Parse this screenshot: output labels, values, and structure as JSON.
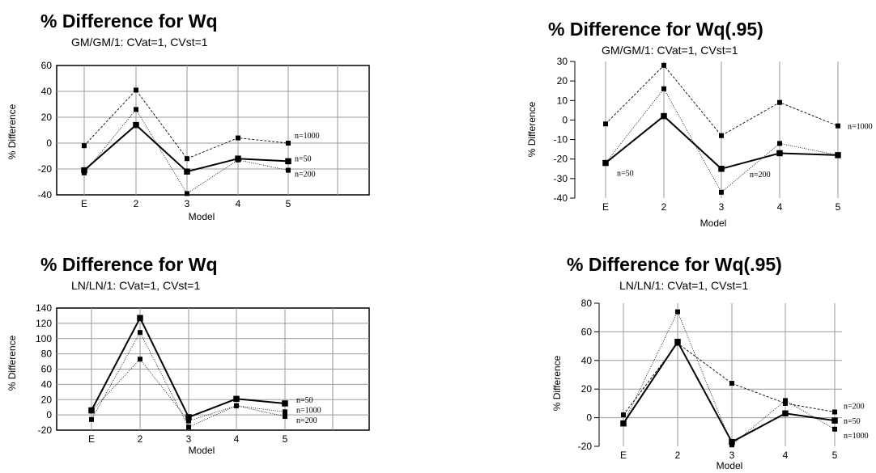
{
  "chart_data": [
    {
      "type": "line",
      "title": "% Difference for Wq",
      "subtitle": "GM/GM/1: CVat=1, CVst=1",
      "xlabel": "Model",
      "ylabel": "% Difference",
      "categories": [
        "E",
        "2",
        "3",
        "4",
        "5"
      ],
      "ylim": [
        -40,
        60
      ],
      "yticks": [
        60,
        40,
        20,
        0,
        -20,
        -40
      ],
      "grid": true,
      "series": [
        {
          "name": "n=1000",
          "values": [
            -2,
            41,
            -12,
            4,
            0
          ]
        },
        {
          "name": "n=50",
          "values": [
            -21,
            14,
            -22,
            -12,
            -14
          ]
        },
        {
          "name": "n=200",
          "values": [
            -23,
            26,
            -39,
            -13,
            -21
          ]
        }
      ]
    },
    {
      "type": "line",
      "title": "% Difference for Wq(.95)",
      "subtitle": "GM/GM/1: CVat=1, CVst=1",
      "xlabel": "Model",
      "ylabel": "% Difference",
      "categories": [
        "E",
        "2",
        "3",
        "4",
        "5"
      ],
      "ylim": [
        -40,
        30
      ],
      "yticks": [
        30,
        20,
        10,
        0,
        -10,
        -20,
        -30,
        -40
      ],
      "grid": true,
      "series": [
        {
          "name": "n=1000",
          "values": [
            -2,
            28,
            -8,
            9,
            -3
          ]
        },
        {
          "name": "n=50",
          "values": [
            -22,
            16,
            -37,
            -12,
            -18
          ]
        },
        {
          "name": "n=200",
          "values": [
            -22,
            2,
            -25,
            -17,
            -18
          ]
        }
      ]
    },
    {
      "type": "line",
      "title": "% Difference for Wq",
      "subtitle": "LN/LN/1: CVat=1, CVst=1",
      "xlabel": "Model",
      "ylabel": "% Difference",
      "categories": [
        "E",
        "2",
        "3",
        "4",
        "5"
      ],
      "ylim": [
        -20,
        140
      ],
      "yticks": [
        140,
        120,
        100,
        80,
        60,
        40,
        20,
        0,
        -20
      ],
      "grid": true,
      "series": [
        {
          "name": "n=50",
          "values": [
            6,
            127,
            -3,
            21,
            15
          ]
        },
        {
          "name": "n=1000",
          "values": [
            5,
            73,
            -8,
            12,
            4
          ]
        },
        {
          "name": "n=200",
          "values": [
            -6,
            108,
            -16,
            12,
            -2
          ]
        }
      ]
    },
    {
      "type": "line",
      "title": "% Difference for Wq(.95)",
      "subtitle": "LN/LN/1: CVat=1, CVst=1",
      "xlabel": "Model",
      "ylabel": "% Difference",
      "categories": [
        "E",
        "2",
        "3",
        "4",
        "5"
      ],
      "ylim": [
        -20,
        80
      ],
      "yticks": [
        80,
        60,
        40,
        20,
        0,
        -20
      ],
      "grid": true,
      "series": [
        {
          "name": "n=200",
          "values": [
            2,
            52,
            24,
            10,
            4
          ]
        },
        {
          "name": "n=50",
          "values": [
            -4,
            53,
            -17,
            3,
            -2
          ]
        },
        {
          "name": "n=1000",
          "values": [
            -4,
            74,
            -19,
            12,
            -8
          ]
        }
      ]
    }
  ]
}
